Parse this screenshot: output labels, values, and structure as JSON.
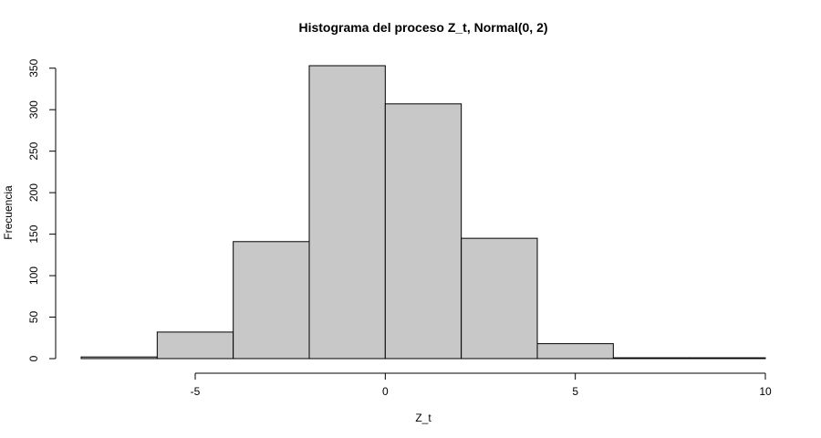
{
  "chart_data": {
    "type": "bar",
    "title": "Histograma del proceso Z_t, Normal(0, 2)",
    "xlabel": "Z_t",
    "ylabel": "Frecuencia",
    "bins": [
      {
        "x0": -8,
        "x1": -6,
        "count": 2
      },
      {
        "x0": -6,
        "x1": -4,
        "count": 32
      },
      {
        "x0": -4,
        "x1": -2,
        "count": 141
      },
      {
        "x0": -2,
        "x1": 0,
        "count": 353
      },
      {
        "x0": 0,
        "x1": 2,
        "count": 307
      },
      {
        "x0": 2,
        "x1": 4,
        "count": 145
      },
      {
        "x0": 4,
        "x1": 6,
        "count": 18
      },
      {
        "x0": 6,
        "x1": 8,
        "count": 1
      },
      {
        "x0": 8,
        "x1": 10,
        "count": 1
      }
    ],
    "xlim": [
      -8,
      10
    ],
    "ylim": [
      0,
      353
    ],
    "x_ticks": [
      -5,
      0,
      5,
      10
    ],
    "x_tick_labels": [
      "-5",
      "0",
      "5",
      "10"
    ],
    "y_ticks": [
      0,
      50,
      100,
      150,
      200,
      250,
      300,
      350
    ],
    "y_tick_labels": [
      "0",
      "50",
      "100",
      "150",
      "200",
      "250",
      "300",
      "350"
    ],
    "bar_color": "#c8c8c8",
    "grid": false,
    "legend": "none"
  }
}
